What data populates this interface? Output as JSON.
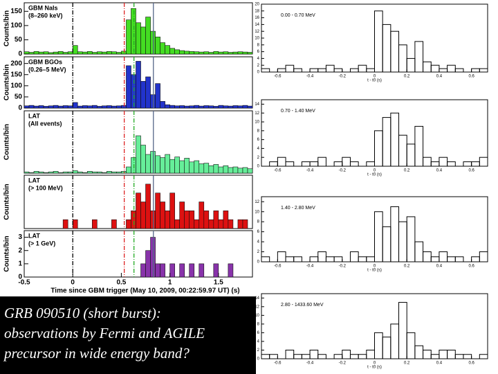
{
  "chart_data": [
    {
      "type": "histogram",
      "ylabel": "Counts/bin",
      "label": [
        "GBM NaIs",
        "(8–260 keV)"
      ],
      "color": "#44dd22",
      "bins": [
        -0.5,
        -0.45,
        -0.4,
        -0.35,
        -0.3,
        -0.25,
        -0.2,
        -0.15,
        -0.1,
        -0.05,
        0,
        0.05,
        0.1,
        0.15,
        0.2,
        0.25,
        0.3,
        0.35,
        0.4,
        0.45,
        0.5,
        0.55,
        0.6,
        0.65,
        0.7,
        0.75,
        0.8,
        0.85,
        0.9,
        0.95,
        1,
        1.05,
        1.1,
        1.15,
        1.2,
        1.25,
        1.3,
        1.35,
        1.4,
        1.45,
        1.5,
        1.55,
        1.6,
        1.65,
        1.7,
        1.75,
        1.8,
        1.85
      ],
      "values": [
        8,
        6,
        9,
        7,
        8,
        5,
        7,
        9,
        6,
        8,
        30,
        8,
        7,
        9,
        6,
        8,
        7,
        9,
        8,
        6,
        10,
        120,
        160,
        110,
        95,
        130,
        80,
        60,
        40,
        30,
        20,
        15,
        12,
        10,
        9,
        8,
        7,
        8,
        6,
        9,
        7,
        8,
        6,
        7,
        8,
        7,
        6
      ],
      "xlim": [
        -0.5,
        1.85
      ],
      "ylim": [
        0,
        180
      ],
      "yticks": [
        0,
        50,
        100,
        150
      ],
      "vlines": [
        0,
        0.53,
        0.63,
        0.83
      ],
      "vline_colors": [
        "#000000",
        "#dd2222",
        "#22aa22",
        "#556688"
      ]
    },
    {
      "type": "histogram",
      "ylabel": "Counts/bin",
      "label": [
        "GBM BGOs",
        "(0.26–5 MeV)"
      ],
      "color": "#2233cc",
      "bins": [
        -0.5,
        -0.45,
        -0.4,
        -0.35,
        -0.3,
        -0.25,
        -0.2,
        -0.15,
        -0.1,
        -0.05,
        0,
        0.05,
        0.1,
        0.15,
        0.2,
        0.25,
        0.3,
        0.35,
        0.4,
        0.45,
        0.5,
        0.55,
        0.6,
        0.65,
        0.7,
        0.75,
        0.8,
        0.85,
        0.9,
        0.95,
        1,
        1.05,
        1.1,
        1.15,
        1.2,
        1.25,
        1.3,
        1.35,
        1.4,
        1.45,
        1.5,
        1.55,
        1.6,
        1.65,
        1.7,
        1.75,
        1.8,
        1.85
      ],
      "values": [
        10,
        12,
        9,
        11,
        8,
        10,
        12,
        9,
        11,
        10,
        25,
        9,
        11,
        10,
        12,
        8,
        10,
        11,
        9,
        10,
        12,
        190,
        150,
        210,
        120,
        140,
        60,
        110,
        30,
        15,
        12,
        10,
        11,
        9,
        10,
        12,
        9,
        11,
        10,
        8,
        12,
        10,
        9,
        11,
        10,
        12,
        9
      ],
      "xlim": [
        -0.5,
        1.85
      ],
      "ylim": [
        0,
        230
      ],
      "yticks": [
        0,
        50,
        100,
        150,
        200
      ],
      "vlines": [
        0,
        0.53,
        0.63,
        0.83
      ],
      "vline_colors": [
        "#000000",
        "#dd2222",
        "#22aa22",
        "#556688"
      ]
    },
    {
      "type": "histogram",
      "ylabel": "Counts/bin",
      "label": [
        "LAT",
        "(All events)"
      ],
      "color": "#66ee99",
      "bins": [
        -0.5,
        -0.45,
        -0.4,
        -0.35,
        -0.3,
        -0.25,
        -0.2,
        -0.15,
        -0.1,
        -0.05,
        0,
        0.05,
        0.1,
        0.15,
        0.2,
        0.25,
        0.3,
        0.35,
        0.4,
        0.45,
        0.5,
        0.55,
        0.6,
        0.65,
        0.7,
        0.75,
        0.8,
        0.85,
        0.9,
        0.95,
        1,
        1.05,
        1.1,
        1.15,
        1.2,
        1.25,
        1.3,
        1.35,
        1.4,
        1.45,
        1.5,
        1.55,
        1.6,
        1.65,
        1.7,
        1.75,
        1.8,
        1.85
      ],
      "values": [
        2,
        1,
        3,
        2,
        1,
        2,
        3,
        1,
        2,
        2,
        4,
        2,
        1,
        3,
        2,
        2,
        1,
        3,
        2,
        2,
        3,
        10,
        25,
        60,
        45,
        30,
        35,
        28,
        25,
        30,
        22,
        26,
        20,
        24,
        18,
        20,
        15,
        16,
        12,
        14,
        10,
        12,
        9,
        10,
        8,
        9,
        7
      ],
      "xlim": [
        -0.5,
        1.85
      ],
      "ylim": [
        0,
        100
      ],
      "vlines": [
        0,
        0.53,
        0.63,
        0.83
      ],
      "vline_colors": [
        "#000000",
        "#dd2222",
        "#22aa22",
        "#556688"
      ]
    },
    {
      "type": "histogram",
      "ylabel": "Counts/bin",
      "label": [
        "LAT",
        "(> 100 MeV)"
      ],
      "color": "#dd1111",
      "bins": [
        -0.5,
        -0.45,
        -0.4,
        -0.35,
        -0.3,
        -0.25,
        -0.2,
        -0.15,
        -0.1,
        -0.05,
        0,
        0.05,
        0.1,
        0.15,
        0.2,
        0.25,
        0.3,
        0.35,
        0.4,
        0.45,
        0.5,
        0.55,
        0.6,
        0.65,
        0.7,
        0.75,
        0.8,
        0.85,
        0.9,
        0.95,
        1,
        1.05,
        1.1,
        1.15,
        1.2,
        1.25,
        1.3,
        1.35,
        1.4,
        1.45,
        1.5,
        1.55,
        1.6,
        1.65,
        1.7,
        1.75,
        1.8,
        1.85
      ],
      "values": [
        0,
        0,
        0,
        0,
        0,
        0,
        0,
        0,
        1,
        0,
        1,
        0,
        0,
        0,
        1,
        0,
        0,
        0,
        1,
        0,
        0,
        1,
        2,
        4,
        3,
        5,
        2,
        4,
        3,
        2,
        4,
        1,
        3,
        2,
        2,
        1,
        3,
        2,
        1,
        2,
        1,
        2,
        1,
        0,
        1,
        1,
        0
      ],
      "xlim": [
        -0.5,
        1.85
      ],
      "ylim": [
        0,
        6
      ],
      "vlines": [
        0,
        0.53,
        0.63,
        0.83
      ],
      "vline_colors": [
        "#000000",
        "#dd2222",
        "#22aa22",
        "#556688"
      ]
    },
    {
      "type": "histogram",
      "ylabel": "Counts/bin",
      "label": [
        "LAT",
        "(> 1 GeV)"
      ],
      "color": "#8833aa",
      "bins": [
        -0.5,
        -0.45,
        -0.4,
        -0.35,
        -0.3,
        -0.25,
        -0.2,
        -0.15,
        -0.1,
        -0.05,
        0,
        0.05,
        0.1,
        0.15,
        0.2,
        0.25,
        0.3,
        0.35,
        0.4,
        0.45,
        0.5,
        0.55,
        0.6,
        0.65,
        0.7,
        0.75,
        0.8,
        0.85,
        0.9,
        0.95,
        1,
        1.05,
        1.1,
        1.15,
        1.2,
        1.25,
        1.3,
        1.35,
        1.4,
        1.45,
        1.5,
        1.55,
        1.6,
        1.65,
        1.7,
        1.75,
        1.8,
        1.85
      ],
      "values": [
        0,
        0,
        0,
        0,
        0,
        0,
        0,
        0,
        0,
        0,
        0,
        0,
        0,
        0,
        0,
        0,
        0,
        0,
        0,
        0,
        0,
        0,
        0,
        0,
        1,
        2,
        3,
        1,
        1,
        0,
        1,
        0,
        1,
        0,
        1,
        0,
        1,
        0,
        0,
        1,
        0,
        0,
        1,
        0,
        0,
        0,
        0
      ],
      "xlim": [
        -0.5,
        1.85
      ],
      "ylim": [
        0,
        3.5
      ],
      "yticks": [
        0,
        1,
        2,
        3
      ],
      "xticks": [
        -0.5,
        0,
        0.5,
        1,
        1.5
      ],
      "xlabel": "Time since GBM trigger (May 10, 2009, 00:22:59.97 UT) (s)",
      "vlines": [
        0,
        0.53,
        0.63,
        0.83
      ],
      "vline_colors": [
        "#000000",
        "#dd2222",
        "#22aa22",
        "#556688"
      ]
    },
    {
      "type": "histogram",
      "label": [
        "0.00 - 0.70 MeV"
      ],
      "color": "none",
      "bins": [
        -0.7,
        -0.65,
        -0.6,
        -0.55,
        -0.5,
        -0.45,
        -0.4,
        -0.35,
        -0.3,
        -0.25,
        -0.2,
        -0.15,
        -0.1,
        -0.05,
        0,
        0.05,
        0.1,
        0.15,
        0.2,
        0.25,
        0.3,
        0.35,
        0.4,
        0.45,
        0.5,
        0.55,
        0.6,
        0.65,
        0.7
      ],
      "values": [
        1,
        0,
        1,
        2,
        1,
        0,
        1,
        1,
        2,
        1,
        0,
        1,
        2,
        1,
        18,
        14,
        12,
        8,
        4,
        9,
        3,
        2,
        1,
        2,
        1,
        0,
        1,
        1
      ],
      "xlim": [
        -0.7,
        0.7
      ],
      "ylim": [
        0,
        20
      ],
      "yticks": [
        0,
        2,
        4,
        6,
        8,
        10,
        12,
        14,
        16,
        18,
        20
      ],
      "xticks": [
        -0.6,
        -0.4,
        -0.2,
        0,
        0.2,
        0.4,
        0.6
      ],
      "xlabel": "t - t0 (s)"
    },
    {
      "type": "histogram",
      "label": [
        "0.70 - 1.40 MeV"
      ],
      "color": "none",
      "bins": [
        -0.7,
        -0.65,
        -0.6,
        -0.55,
        -0.5,
        -0.45,
        -0.4,
        -0.35,
        -0.3,
        -0.25,
        -0.2,
        -0.15,
        -0.1,
        -0.05,
        0,
        0.05,
        0.1,
        0.15,
        0.2,
        0.25,
        0.3,
        0.35,
        0.4,
        0.45,
        0.5,
        0.55,
        0.6,
        0.65,
        0.7
      ],
      "values": [
        0,
        1,
        2,
        1,
        0,
        1,
        1,
        2,
        0,
        1,
        2,
        1,
        0,
        1,
        8,
        11,
        12,
        7,
        5,
        9,
        2,
        1,
        2,
        1,
        0,
        1,
        1,
        2
      ],
      "xlim": [
        -0.7,
        0.7
      ],
      "ylim": [
        0,
        15
      ],
      "yticks": [
        0,
        2,
        4,
        6,
        8,
        10,
        12,
        14
      ],
      "xticks": [
        -0.6,
        -0.4,
        -0.2,
        0,
        0.2,
        0.4,
        0.6
      ],
      "xlabel": "t - t0 (s)"
    },
    {
      "type": "histogram",
      "label": [
        "1.40 - 2.80 MeV"
      ],
      "color": "none",
      "bins": [
        -0.7,
        -0.65,
        -0.6,
        -0.55,
        -0.5,
        -0.45,
        -0.4,
        -0.35,
        -0.3,
        -0.25,
        -0.2,
        -0.15,
        -0.1,
        -0.05,
        0,
        0.05,
        0.1,
        0.15,
        0.2,
        0.25,
        0.3,
        0.35,
        0.4,
        0.45,
        0.5,
        0.55,
        0.6,
        0.65,
        0.7
      ],
      "values": [
        1,
        0,
        2,
        1,
        1,
        0,
        1,
        2,
        1,
        1,
        0,
        2,
        1,
        1,
        10,
        7,
        11,
        8,
        9,
        4,
        2,
        1,
        2,
        1,
        1,
        0,
        1,
        2
      ],
      "xlim": [
        -0.7,
        0.7
      ],
      "ylim": [
        0,
        13
      ],
      "yticks": [
        0,
        2,
        4,
        6,
        8,
        10,
        12
      ],
      "xticks": [
        -0.6,
        -0.4,
        -0.2,
        0,
        0.2,
        0.4,
        0.6
      ],
      "xlabel": "t - t0 (s)"
    },
    {
      "type": "histogram",
      "label": [
        "2.80 - 1433.60 MeV"
      ],
      "color": "none",
      "bins": [
        -0.7,
        -0.65,
        -0.6,
        -0.55,
        -0.5,
        -0.45,
        -0.4,
        -0.35,
        -0.3,
        -0.25,
        -0.2,
        -0.15,
        -0.1,
        -0.05,
        0,
        0.05,
        0.1,
        0.15,
        0.2,
        0.25,
        0.3,
        0.35,
        0.4,
        0.45,
        0.5,
        0.55,
        0.6,
        0.65,
        0.7
      ],
      "values": [
        1,
        1,
        0,
        2,
        1,
        1,
        2,
        1,
        0,
        1,
        2,
        1,
        1,
        2,
        6,
        5,
        8,
        13,
        6,
        3,
        2,
        1,
        2,
        2,
        1,
        1,
        0,
        1
      ],
      "xlim": [
        -0.7,
        0.7
      ],
      "ylim": [
        0,
        15
      ],
      "yticks": [
        0,
        2,
        4,
        6,
        8,
        10,
        12,
        14
      ],
      "xticks": [
        -0.6,
        -0.4,
        -0.2,
        0,
        0.2,
        0.4,
        0.6
      ],
      "xlabel": "t - t0 (s)"
    }
  ],
  "caption": [
    "GRB 090510 (short burst):",
    "observations by Fermi and AGILE",
    "precursor in wide energy band?"
  ]
}
